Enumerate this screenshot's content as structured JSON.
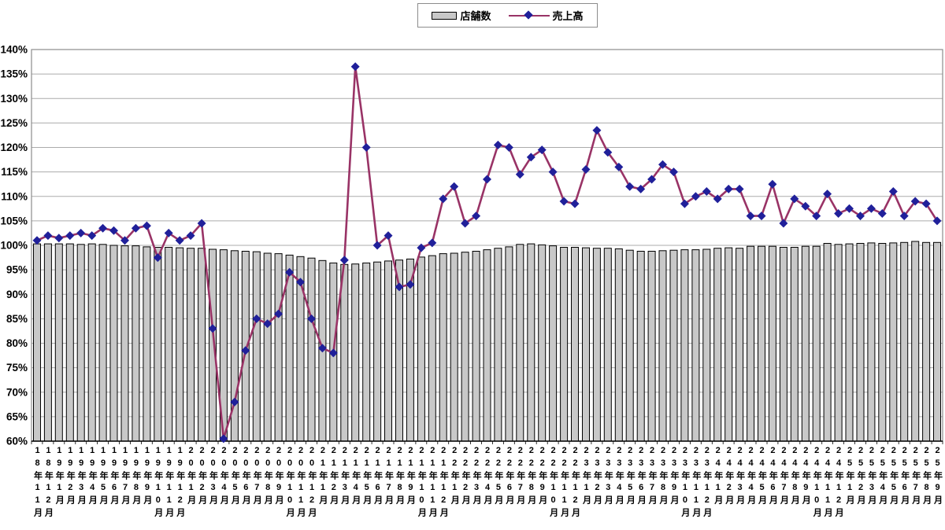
{
  "legend": {
    "series1": "店舗数",
    "series2": "売上高"
  },
  "colors": {
    "background": "#ffffff",
    "bar_fill": "#c8c8c8",
    "bar_border": "#000000",
    "line": "#993366",
    "marker": "#20209a",
    "grid": "#ababab",
    "frame": "#8c8c8c",
    "axis": "#000000"
  },
  "chart_data": {
    "type": "bar+line combo",
    "title": "",
    "xlabel": "",
    "ylabel": "",
    "ylim": [
      60,
      140
    ],
    "grid": true,
    "legend_position": "top-center",
    "value_format": "percent",
    "y_ticks": [
      "140%",
      "135%",
      "130%",
      "125%",
      "120%",
      "115%",
      "110%",
      "105%",
      "100%",
      "95%",
      "90%",
      "85%",
      "80%",
      "75%",
      "70%",
      "65%",
      "60%"
    ],
    "categories": [
      "18年11月",
      "18年12月",
      "19年1月",
      "19年2月",
      "19年3月",
      "19年4月",
      "19年5月",
      "19年6月",
      "19年7月",
      "19年8月",
      "19年9月",
      "19年10月",
      "19年11月",
      "19年12月",
      "20年1月",
      "20年2月",
      "20年3月",
      "20年4月",
      "20年5月",
      "20年6月",
      "20年7月",
      "20年8月",
      "20年9月",
      "20年10月",
      "20年11月",
      "20年12月",
      "21年1月",
      "21年2月",
      "21年3月",
      "21年4月",
      "21年5月",
      "21年6月",
      "21年7月",
      "21年8月",
      "21年9月",
      "21年10月",
      "21年11月",
      "21年12月",
      "22年1月",
      "22年2月",
      "22年3月",
      "22年4月",
      "22年5月",
      "22年6月",
      "22年7月",
      "22年8月",
      "22年9月",
      "22年10月",
      "22年11月",
      "22年12月",
      "23年1月",
      "23年2月",
      "23年3月",
      "23年4月",
      "23年5月",
      "23年6月",
      "23年7月",
      "23年8月",
      "23年9月",
      "23年10月",
      "23年11月",
      "23年12月",
      "24年1月",
      "24年2月",
      "24年3月",
      "24年4月",
      "24年5月",
      "24年6月",
      "24年7月",
      "24年8月",
      "24年9月",
      "24年10月",
      "24年11月",
      "24年12月",
      "25年1月",
      "25年2月",
      "25年3月",
      "25年4月",
      "25年5月",
      "25年6月",
      "25年7月",
      "25年8月",
      "25年9月"
    ],
    "series": [
      {
        "name": "店舗数",
        "type": "bar",
        "values": [
          100.3,
          100.3,
          100.3,
          100.3,
          100.2,
          100.3,
          100.2,
          100.0,
          99.9,
          99.9,
          99.7,
          99.6,
          99.6,
          99.5,
          99.4,
          99.4,
          99.2,
          99.1,
          98.9,
          98.8,
          98.7,
          98.4,
          98.3,
          98.0,
          97.7,
          97.4,
          96.9,
          96.4,
          96.1,
          96.2,
          96.4,
          96.6,
          96.8,
          97.0,
          97.2,
          97.6,
          97.9,
          98.3,
          98.4,
          98.6,
          98.8,
          99.1,
          99.4,
          99.7,
          100.2,
          100.3,
          100.1,
          99.9,
          99.6,
          99.6,
          99.5,
          99.4,
          99.4,
          99.3,
          99.0,
          98.8,
          98.8,
          98.9,
          99.0,
          99.1,
          99.1,
          99.2,
          99.4,
          99.5,
          99.4,
          99.8,
          99.8,
          99.8,
          99.6,
          99.6,
          99.8,
          99.8,
          100.4,
          100.2,
          100.3,
          100.4,
          100.5,
          100.4,
          100.5,
          100.6,
          100.8,
          100.6,
          100.6
        ]
      },
      {
        "name": "売上高",
        "type": "line",
        "values": [
          101.0,
          102.0,
          101.5,
          102.0,
          102.5,
          102.0,
          103.5,
          103.0,
          101.0,
          103.5,
          104.0,
          97.5,
          102.5,
          101.0,
          102.0,
          104.5,
          83.0,
          60.5,
          68.0,
          78.5,
          85.0,
          84.0,
          86.0,
          94.5,
          92.5,
          85.0,
          79.0,
          78.0,
          97.0,
          136.5,
          120.0,
          100.0,
          102.0,
          91.5,
          92.0,
          99.5,
          100.5,
          109.5,
          112.0,
          104.5,
          106.0,
          113.5,
          120.5,
          120.0,
          114.5,
          118.0,
          119.5,
          115.0,
          109.0,
          108.5,
          115.5,
          123.5,
          119.0,
          116.0,
          112.0,
          111.5,
          113.5,
          116.5,
          115.0,
          108.5,
          110.0,
          111.0,
          109.5,
          111.5,
          111.5,
          106.0,
          106.0,
          112.5,
          104.5,
          109.5,
          108.0,
          106.0,
          110.5,
          106.5,
          107.5,
          106.0,
          107.5,
          106.5,
          111.0,
          106.0,
          109.0,
          108.5,
          105.0
        ]
      }
    ]
  }
}
